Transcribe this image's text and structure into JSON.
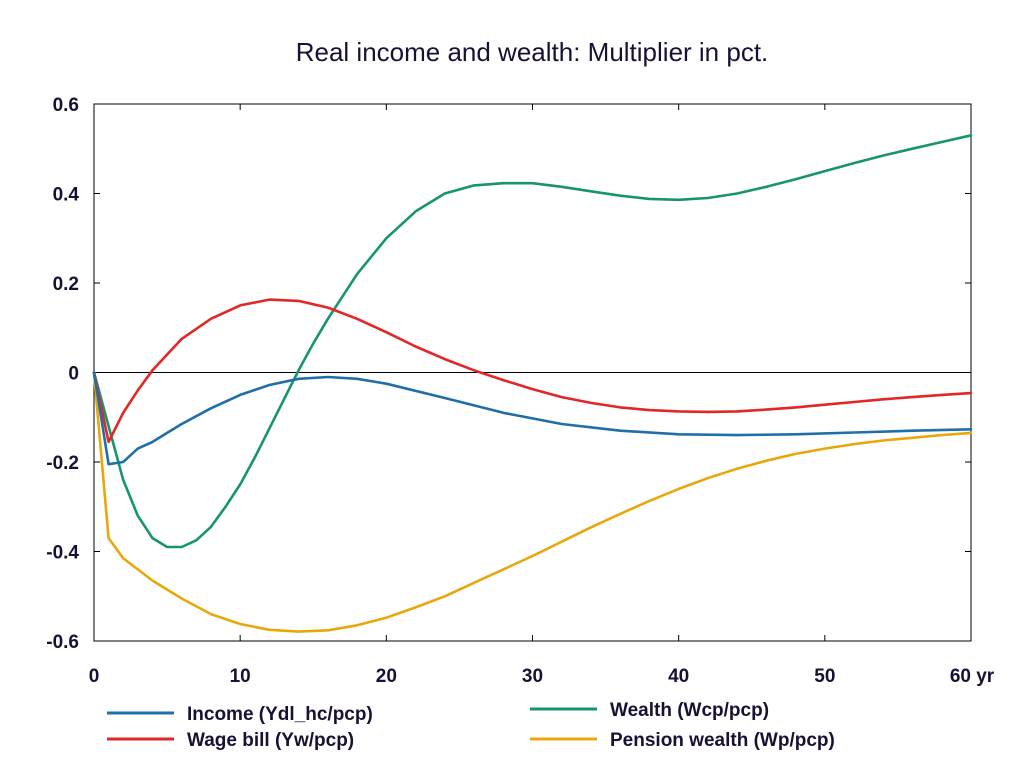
{
  "chart_data": {
    "type": "line",
    "title": "Real income and wealth: Multiplier in pct.",
    "xlabel": "",
    "ylabel": "",
    "x_unit_label": "yr",
    "xlim": [
      0,
      60
    ],
    "ylim": [
      -0.6,
      0.6
    ],
    "x_ticks": [
      "0",
      "10",
      "20",
      "30",
      "40",
      "50",
      "60 yr"
    ],
    "y_ticks": [
      "0.6",
      "0.4",
      "0.2",
      "0",
      "-0.2",
      "-0.4",
      "-0.6"
    ],
    "zero_line": true,
    "grid": false,
    "legend_position": "bottom",
    "series": [
      {
        "name": "Income (Ydl_hc/pcp)",
        "color": "#1f6fa8",
        "x": [
          0,
          1,
          2,
          3,
          4,
          5,
          6,
          8,
          10,
          12,
          14,
          16,
          18,
          20,
          24,
          28,
          32,
          36,
          40,
          44,
          48,
          52,
          56,
          60
        ],
        "y": [
          0,
          -0.205,
          -0.2,
          -0.17,
          -0.155,
          -0.135,
          -0.115,
          -0.08,
          -0.05,
          -0.028,
          -0.014,
          -0.01,
          -0.014,
          -0.025,
          -0.057,
          -0.09,
          -0.115,
          -0.13,
          -0.138,
          -0.14,
          -0.138,
          -0.134,
          -0.13,
          -0.127
        ]
      },
      {
        "name": "Wage bill (Yw/pcp)",
        "color": "#e32626",
        "x": [
          0,
          1,
          2,
          3,
          4,
          6,
          8,
          10,
          12,
          14,
          16,
          18,
          20,
          22,
          24,
          26,
          28,
          30,
          32,
          34,
          36,
          38,
          40,
          42,
          44,
          46,
          48,
          50,
          52,
          54,
          56,
          58,
          60
        ],
        "y": [
          0,
          -0.155,
          -0.09,
          -0.04,
          0.005,
          0.075,
          0.12,
          0.15,
          0.163,
          0.16,
          0.145,
          0.12,
          0.09,
          0.058,
          0.03,
          0.005,
          -0.017,
          -0.037,
          -0.055,
          -0.068,
          -0.078,
          -0.084,
          -0.087,
          -0.088,
          -0.087,
          -0.083,
          -0.078,
          -0.072,
          -0.066,
          -0.06,
          -0.055,
          -0.05,
          -0.046
        ]
      },
      {
        "name": "Wealth (Wcp/pcp)",
        "color": "#17956e",
        "x": [
          0,
          1,
          2,
          3,
          4,
          5,
          6,
          7,
          8,
          9,
          10,
          11,
          12,
          13,
          14,
          15,
          16,
          18,
          20,
          22,
          24,
          26,
          28,
          30,
          32,
          34,
          36,
          38,
          40,
          42,
          44,
          46,
          48,
          50,
          52,
          54,
          56,
          58,
          60
        ],
        "y": [
          0,
          -0.12,
          -0.24,
          -0.32,
          -0.37,
          -0.39,
          -0.39,
          -0.375,
          -0.345,
          -0.3,
          -0.25,
          -0.19,
          -0.125,
          -0.06,
          0.005,
          0.065,
          0.12,
          0.22,
          0.3,
          0.36,
          0.4,
          0.418,
          0.423,
          0.423,
          0.415,
          0.405,
          0.395,
          0.388,
          0.386,
          0.39,
          0.4,
          0.415,
          0.432,
          0.45,
          0.468,
          0.485,
          0.5,
          0.515,
          0.53
        ]
      },
      {
        "name": "Pension wealth (Wp/pcp)",
        "color": "#e8a80c",
        "x": [
          0,
          1,
          2,
          3,
          4,
          6,
          8,
          10,
          12,
          14,
          16,
          18,
          20,
          22,
          24,
          26,
          28,
          30,
          32,
          34,
          36,
          38,
          40,
          42,
          44,
          46,
          48,
          50,
          52,
          54,
          56,
          58,
          60
        ],
        "y": [
          0,
          -0.37,
          -0.415,
          -0.44,
          -0.465,
          -0.505,
          -0.54,
          -0.562,
          -0.575,
          -0.579,
          -0.576,
          -0.565,
          -0.548,
          -0.525,
          -0.5,
          -0.47,
          -0.44,
          -0.41,
          -0.378,
          -0.346,
          -0.316,
          -0.287,
          -0.26,
          -0.236,
          -0.215,
          -0.197,
          -0.182,
          -0.17,
          -0.16,
          -0.152,
          -0.146,
          -0.14,
          -0.135
        ]
      }
    ]
  }
}
